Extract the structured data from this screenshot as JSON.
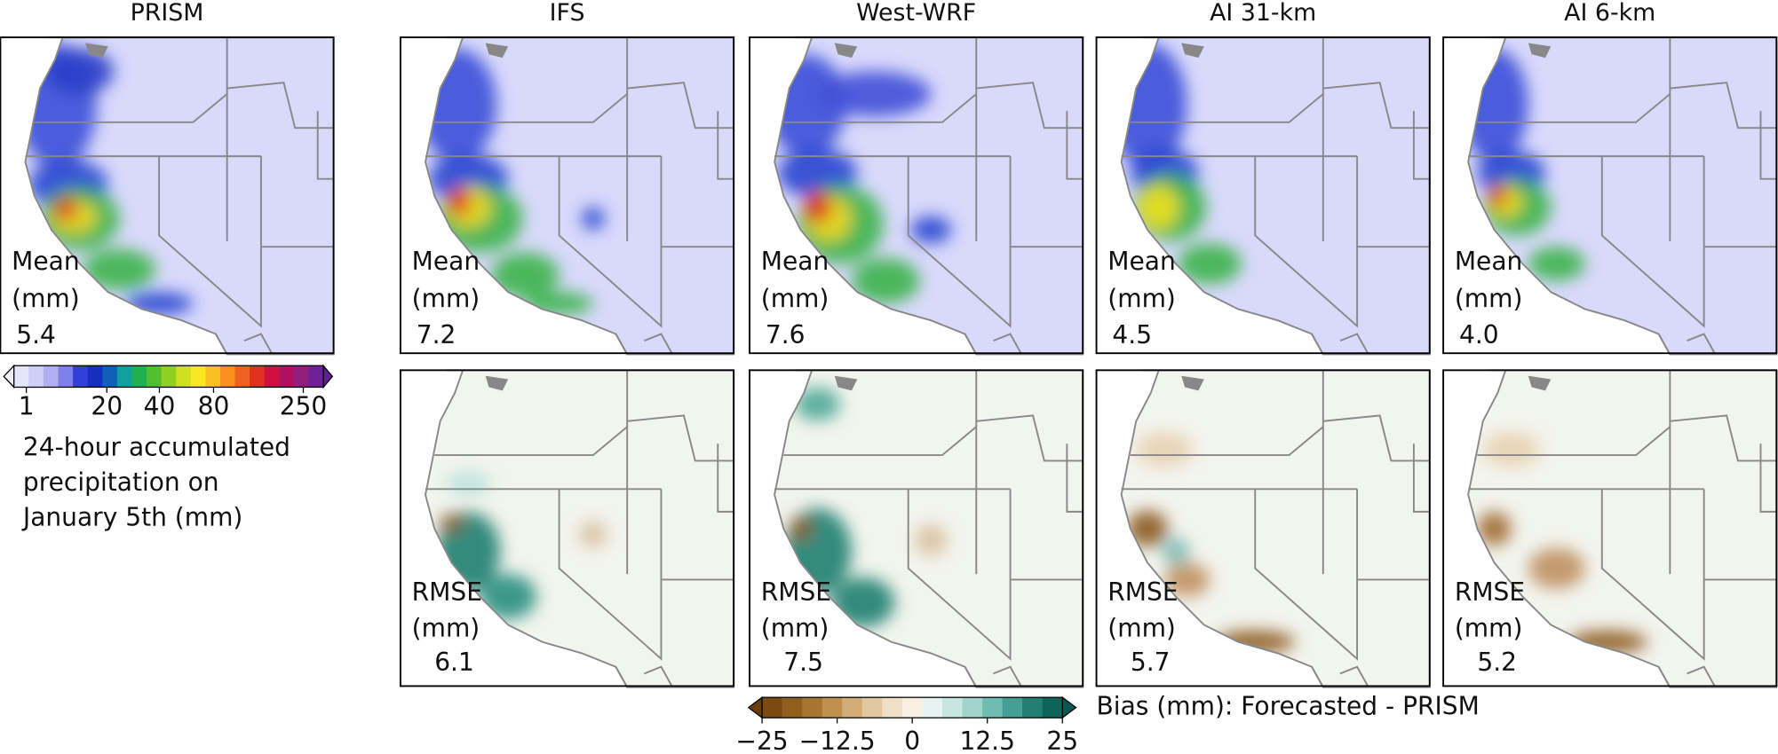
{
  "columns": [
    "PRISM",
    "IFS",
    "West-WRF",
    "AI 31-km",
    "AI 6-km"
  ],
  "mean": {
    "label": "Mean",
    "unit": "(mm)",
    "values": [
      "5.4",
      "7.2",
      "7.6",
      "4.5",
      "4.0"
    ]
  },
  "rmse": {
    "label": "RMSE",
    "unit": "(mm)",
    "values": [
      "6.1",
      "7.5",
      "5.7",
      "5.2"
    ]
  },
  "precip_colorbar": {
    "ticks": [
      1,
      20,
      40,
      80,
      250
    ],
    "caption": [
      "24-hour accumulated",
      "precipitation on",
      "January 5th (mm)"
    ]
  },
  "bias_colorbar": {
    "lim": [
      -25,
      25
    ],
    "ticks": [
      {
        "value": -25,
        "label": "−25"
      },
      {
        "value": -12.5,
        "label": "−12.5"
      },
      0,
      12.5,
      25
    ],
    "caption": "Bias (mm): Forecasted - PRISM"
  }
}
